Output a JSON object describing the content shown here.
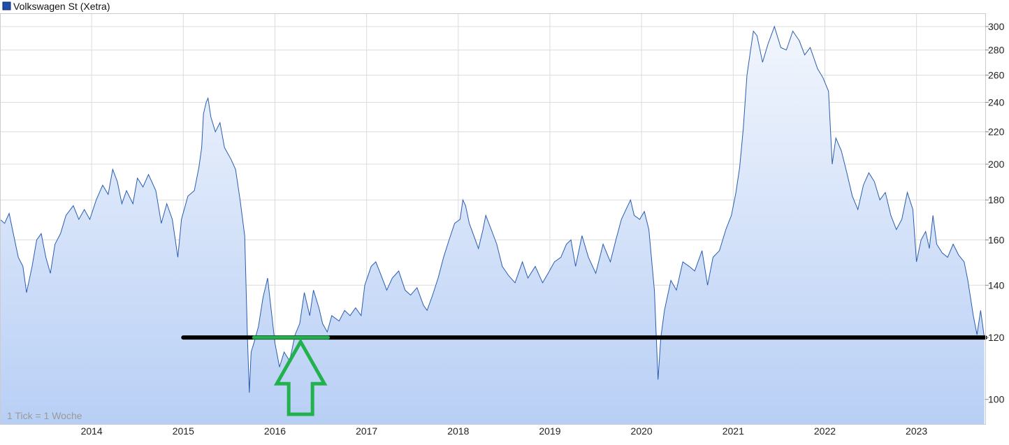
{
  "chart_data": {
    "type": "area",
    "legend": {
      "label": "Volkswagen St (Xetra)",
      "color": "#1f4fa8",
      "placement": "top-left"
    },
    "note": "1 Tick = 1 Woche",
    "x_ticks": [
      "2014",
      "2015",
      "2016",
      "2017",
      "2018",
      "2019",
      "2020",
      "2021",
      "2022",
      "2023"
    ],
    "y_ticks": [
      100,
      120,
      140,
      160,
      180,
      200,
      220,
      240,
      260,
      280,
      300
    ],
    "y_scale": "log",
    "ylim": [
      93,
      312
    ],
    "xlim": [
      2013.0,
      2023.75
    ],
    "grid": true,
    "colors": {
      "line": "#2a5db0",
      "fill_top": "#f2f6fd",
      "fill_bottom": "#b8cff5",
      "grid": "#dcdcdc",
      "support": "#000000",
      "highlight": "#22b14c"
    },
    "series": [
      {
        "values": [
          [
            2013.0,
            170
          ],
          [
            2013.05,
            168
          ],
          [
            2013.1,
            173
          ],
          [
            2013.15,
            162
          ],
          [
            2013.2,
            152
          ],
          [
            2013.25,
            148
          ],
          [
            2013.29,
            137
          ],
          [
            2013.35,
            148
          ],
          [
            2013.4,
            160
          ],
          [
            2013.45,
            163
          ],
          [
            2013.5,
            152
          ],
          [
            2013.55,
            145
          ],
          [
            2013.6,
            158
          ],
          [
            2013.66,
            163
          ],
          [
            2013.72,
            172
          ],
          [
            2013.8,
            177
          ],
          [
            2013.86,
            170
          ],
          [
            2013.92,
            175
          ],
          [
            2013.98,
            170
          ],
          [
            2014.05,
            180
          ],
          [
            2014.12,
            188
          ],
          [
            2014.18,
            183
          ],
          [
            2014.23,
            197
          ],
          [
            2014.28,
            190
          ],
          [
            2014.33,
            178
          ],
          [
            2014.38,
            185
          ],
          [
            2014.45,
            178
          ],
          [
            2014.5,
            192
          ],
          [
            2014.56,
            187
          ],
          [
            2014.62,
            194
          ],
          [
            2014.7,
            185
          ],
          [
            2014.76,
            168
          ],
          [
            2014.82,
            178
          ],
          [
            2014.88,
            170
          ],
          [
            2014.94,
            152
          ],
          [
            2014.98,
            170
          ],
          [
            2015.05,
            182
          ],
          [
            2015.12,
            185
          ],
          [
            2015.17,
            198
          ],
          [
            2015.2,
            210
          ],
          [
            2015.22,
            232
          ],
          [
            2015.25,
            240
          ],
          [
            2015.27,
            243
          ],
          [
            2015.3,
            230
          ],
          [
            2015.35,
            220
          ],
          [
            2015.4,
            226
          ],
          [
            2015.45,
            210
          ],
          [
            2015.52,
            203
          ],
          [
            2015.57,
            197
          ],
          [
            2015.62,
            180
          ],
          [
            2015.67,
            162
          ],
          [
            2015.7,
            120
          ],
          [
            2015.72,
            102
          ],
          [
            2015.74,
            115
          ],
          [
            2015.77,
            118
          ],
          [
            2015.82,
            124
          ],
          [
            2015.87,
            135
          ],
          [
            2015.92,
            143
          ],
          [
            2015.96,
            130
          ],
          [
            2016.0,
            118
          ],
          [
            2016.05,
            110
          ],
          [
            2016.1,
            115
          ],
          [
            2016.16,
            112
          ],
          [
            2016.22,
            121
          ],
          [
            2016.27,
            125
          ],
          [
            2016.32,
            137
          ],
          [
            2016.38,
            128
          ],
          [
            2016.42,
            138
          ],
          [
            2016.48,
            131
          ],
          [
            2016.52,
            125
          ],
          [
            2016.57,
            122
          ],
          [
            2016.62,
            128
          ],
          [
            2016.7,
            126
          ],
          [
            2016.76,
            130
          ],
          [
            2016.82,
            128
          ],
          [
            2016.88,
            131
          ],
          [
            2016.94,
            128
          ],
          [
            2016.98,
            140
          ],
          [
            2017.05,
            148
          ],
          [
            2017.1,
            150
          ],
          [
            2017.15,
            145
          ],
          [
            2017.22,
            138
          ],
          [
            2017.28,
            143
          ],
          [
            2017.35,
            146
          ],
          [
            2017.42,
            138
          ],
          [
            2017.48,
            136
          ],
          [
            2017.55,
            139
          ],
          [
            2017.62,
            132
          ],
          [
            2017.66,
            130
          ],
          [
            2017.72,
            136
          ],
          [
            2017.78,
            143
          ],
          [
            2017.84,
            152
          ],
          [
            2017.9,
            160
          ],
          [
            2017.96,
            168
          ],
          [
            2018.02,
            170
          ],
          [
            2018.05,
            180
          ],
          [
            2018.08,
            177
          ],
          [
            2018.12,
            168
          ],
          [
            2018.17,
            162
          ],
          [
            2018.22,
            156
          ],
          [
            2018.27,
            165
          ],
          [
            2018.3,
            172
          ],
          [
            2018.36,
            165
          ],
          [
            2018.42,
            158
          ],
          [
            2018.48,
            148
          ],
          [
            2018.55,
            144
          ],
          [
            2018.62,
            141
          ],
          [
            2018.7,
            150
          ],
          [
            2018.76,
            143
          ],
          [
            2018.84,
            148
          ],
          [
            2018.92,
            141
          ],
          [
            2018.98,
            145
          ],
          [
            2019.05,
            150
          ],
          [
            2019.12,
            152
          ],
          [
            2019.18,
            158
          ],
          [
            2019.23,
            160
          ],
          [
            2019.28,
            148
          ],
          [
            2019.35,
            162
          ],
          [
            2019.42,
            152
          ],
          [
            2019.5,
            145
          ],
          [
            2019.58,
            158
          ],
          [
            2019.66,
            150
          ],
          [
            2019.72,
            160
          ],
          [
            2019.78,
            170
          ],
          [
            2019.84,
            176
          ],
          [
            2019.88,
            180
          ],
          [
            2019.92,
            172
          ],
          [
            2019.98,
            170
          ],
          [
            2020.03,
            174
          ],
          [
            2020.08,
            165
          ],
          [
            2020.14,
            138
          ],
          [
            2020.18,
            106
          ],
          [
            2020.21,
            120
          ],
          [
            2020.25,
            130
          ],
          [
            2020.32,
            142
          ],
          [
            2020.38,
            138
          ],
          [
            2020.45,
            150
          ],
          [
            2020.52,
            148
          ],
          [
            2020.58,
            146
          ],
          [
            2020.66,
            155
          ],
          [
            2020.72,
            140
          ],
          [
            2020.78,
            152
          ],
          [
            2020.85,
            155
          ],
          [
            2020.92,
            165
          ],
          [
            2020.98,
            172
          ],
          [
            2021.03,
            184
          ],
          [
            2021.07,
            198
          ],
          [
            2021.11,
            222
          ],
          [
            2021.15,
            260
          ],
          [
            2021.19,
            280
          ],
          [
            2021.22,
            296
          ],
          [
            2021.26,
            292
          ],
          [
            2021.32,
            270
          ],
          [
            2021.38,
            285
          ],
          [
            2021.45,
            300
          ],
          [
            2021.52,
            282
          ],
          [
            2021.58,
            280
          ],
          [
            2021.65,
            296
          ],
          [
            2021.72,
            288
          ],
          [
            2021.78,
            276
          ],
          [
            2021.84,
            282
          ],
          [
            2021.92,
            265
          ],
          [
            2021.98,
            258
          ],
          [
            2022.04,
            248
          ],
          [
            2022.08,
            200
          ],
          [
            2022.12,
            216
          ],
          [
            2022.18,
            208
          ],
          [
            2022.24,
            195
          ],
          [
            2022.3,
            182
          ],
          [
            2022.36,
            175
          ],
          [
            2022.42,
            188
          ],
          [
            2022.48,
            195
          ],
          [
            2022.54,
            190
          ],
          [
            2022.6,
            180
          ],
          [
            2022.66,
            184
          ],
          [
            2022.72,
            172
          ],
          [
            2022.78,
            165
          ],
          [
            2022.84,
            170
          ],
          [
            2022.9,
            184
          ],
          [
            2022.96,
            175
          ],
          [
            2023.0,
            150
          ],
          [
            2023.05,
            160
          ],
          [
            2023.1,
            164
          ],
          [
            2023.14,
            156
          ],
          [
            2023.18,
            172
          ],
          [
            2023.22,
            158
          ],
          [
            2023.28,
            154
          ],
          [
            2023.34,
            152
          ],
          [
            2023.4,
            158
          ],
          [
            2023.46,
            153
          ],
          [
            2023.52,
            150
          ],
          [
            2023.56,
            142
          ],
          [
            2023.62,
            128
          ],
          [
            2023.66,
            121
          ],
          [
            2023.7,
            130
          ],
          [
            2023.74,
            120
          ]
        ]
      }
    ],
    "annotations": [
      {
        "type": "horizontal-line",
        "y": 120,
        "x_from": 2015.0,
        "x_to": 2023.75,
        "color": "#000000"
      },
      {
        "type": "horizontal-line",
        "y": 120,
        "x_from": 2015.77,
        "x_to": 2016.58,
        "color": "#22b14c"
      },
      {
        "type": "up-arrow",
        "x": 2016.28,
        "tip_y": 120,
        "color": "#22b14c"
      }
    ]
  }
}
